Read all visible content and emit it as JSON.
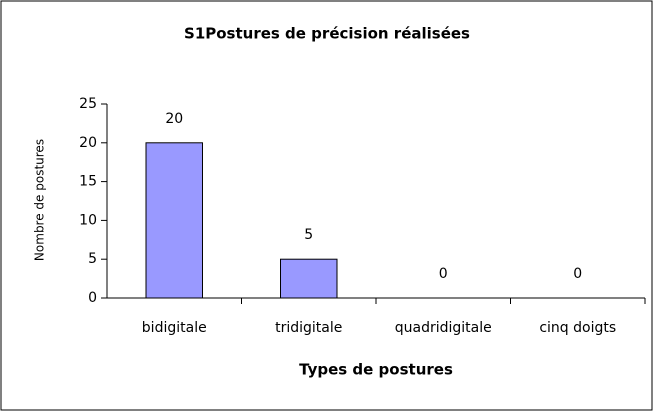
{
  "chart_data": {
    "type": "bar",
    "title": "S1Postures de précision réalisées",
    "x_label": "Types de postures",
    "y_label": "Nombre de postures",
    "categories": [
      "bidigitale",
      "tridigitale",
      "quadridigitale",
      "cinq doigts"
    ],
    "values": [
      20,
      5,
      0,
      0
    ],
    "color": "#9999ff",
    "ylim": [
      0,
      25
    ],
    "yticks": [
      0,
      5,
      10,
      15,
      20,
      25
    ],
    "grid": false
  }
}
